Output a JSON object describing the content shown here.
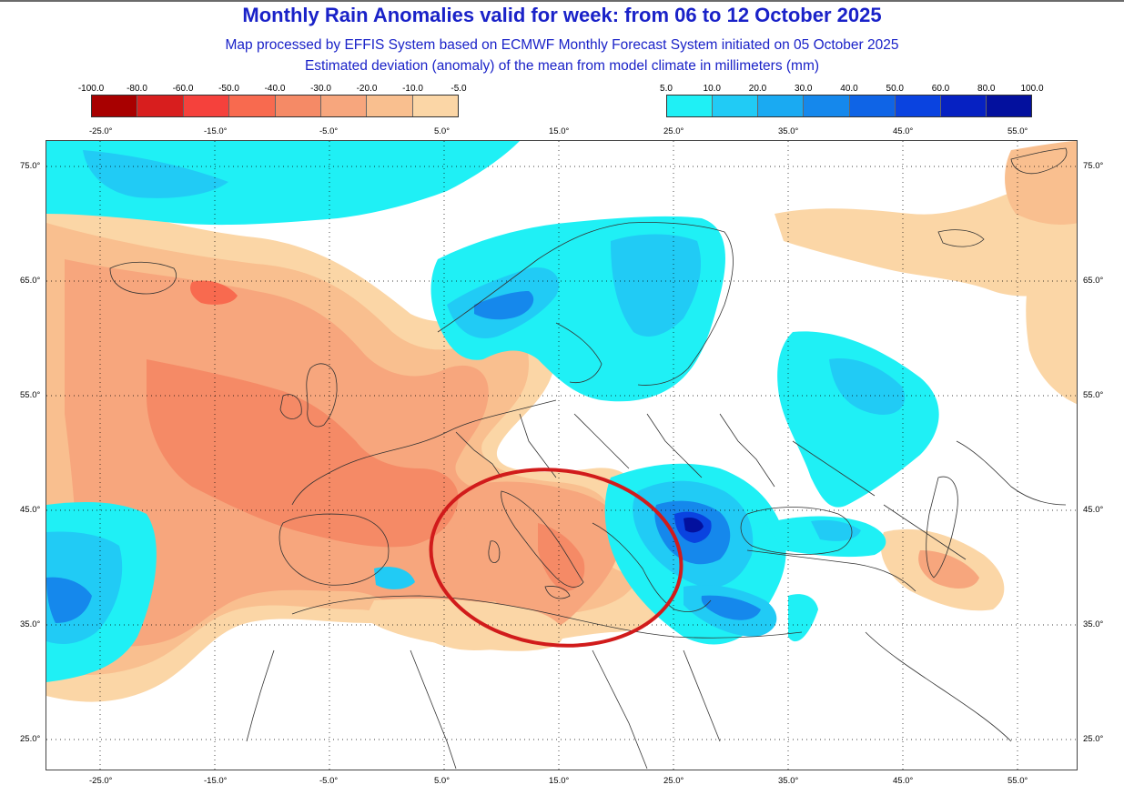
{
  "header": {
    "title": "Monthly Rain Anomalies valid for week: from 06 to 12 October 2025",
    "subtitle1": "Map processed by EFFIS System based on ECMWF Monthly Forecast System initiated on 05 October 2025",
    "subtitle2": "Estimated deviation (anomaly) of the mean from model climate in millimeters (mm)"
  },
  "legend_negative": {
    "labels": [
      "-100.0",
      "-80.0",
      "-60.0",
      "-50.0",
      "-40.0",
      "-30.0",
      "-20.0",
      "-10.0",
      "-5.0"
    ],
    "colors": [
      "#a80000",
      "#d81e1e",
      "#f5413c",
      "#f86a4f",
      "#f58a66",
      "#f7a67d",
      "#f9bf8f",
      "#fbd6a6"
    ]
  },
  "legend_positive": {
    "labels": [
      "5.0",
      "10.0",
      "20.0",
      "30.0",
      "40.0",
      "50.0",
      "60.0",
      "80.0",
      "100.0"
    ],
    "colors": [
      "#1ff0f5",
      "#21cbf5",
      "#1aaaf2",
      "#1588ec",
      "#0f64e6",
      "#0a43e0",
      "#0621c2",
      "#03109e"
    ]
  },
  "axes": {
    "lon_labels": [
      "-25.0°",
      "-15.0°",
      "-5.0°",
      "5.0°",
      "15.0°",
      "25.0°",
      "35.0°",
      "45.0°",
      "55.0°"
    ],
    "lat_labels": [
      "75.0°",
      "65.0°",
      "55.0°",
      "45.0°",
      "35.0°",
      "25.0°"
    ]
  },
  "colors": {
    "title": "#1a22c8",
    "highlight_ellipse": "#d11b1b",
    "coastline": "#333333"
  }
}
